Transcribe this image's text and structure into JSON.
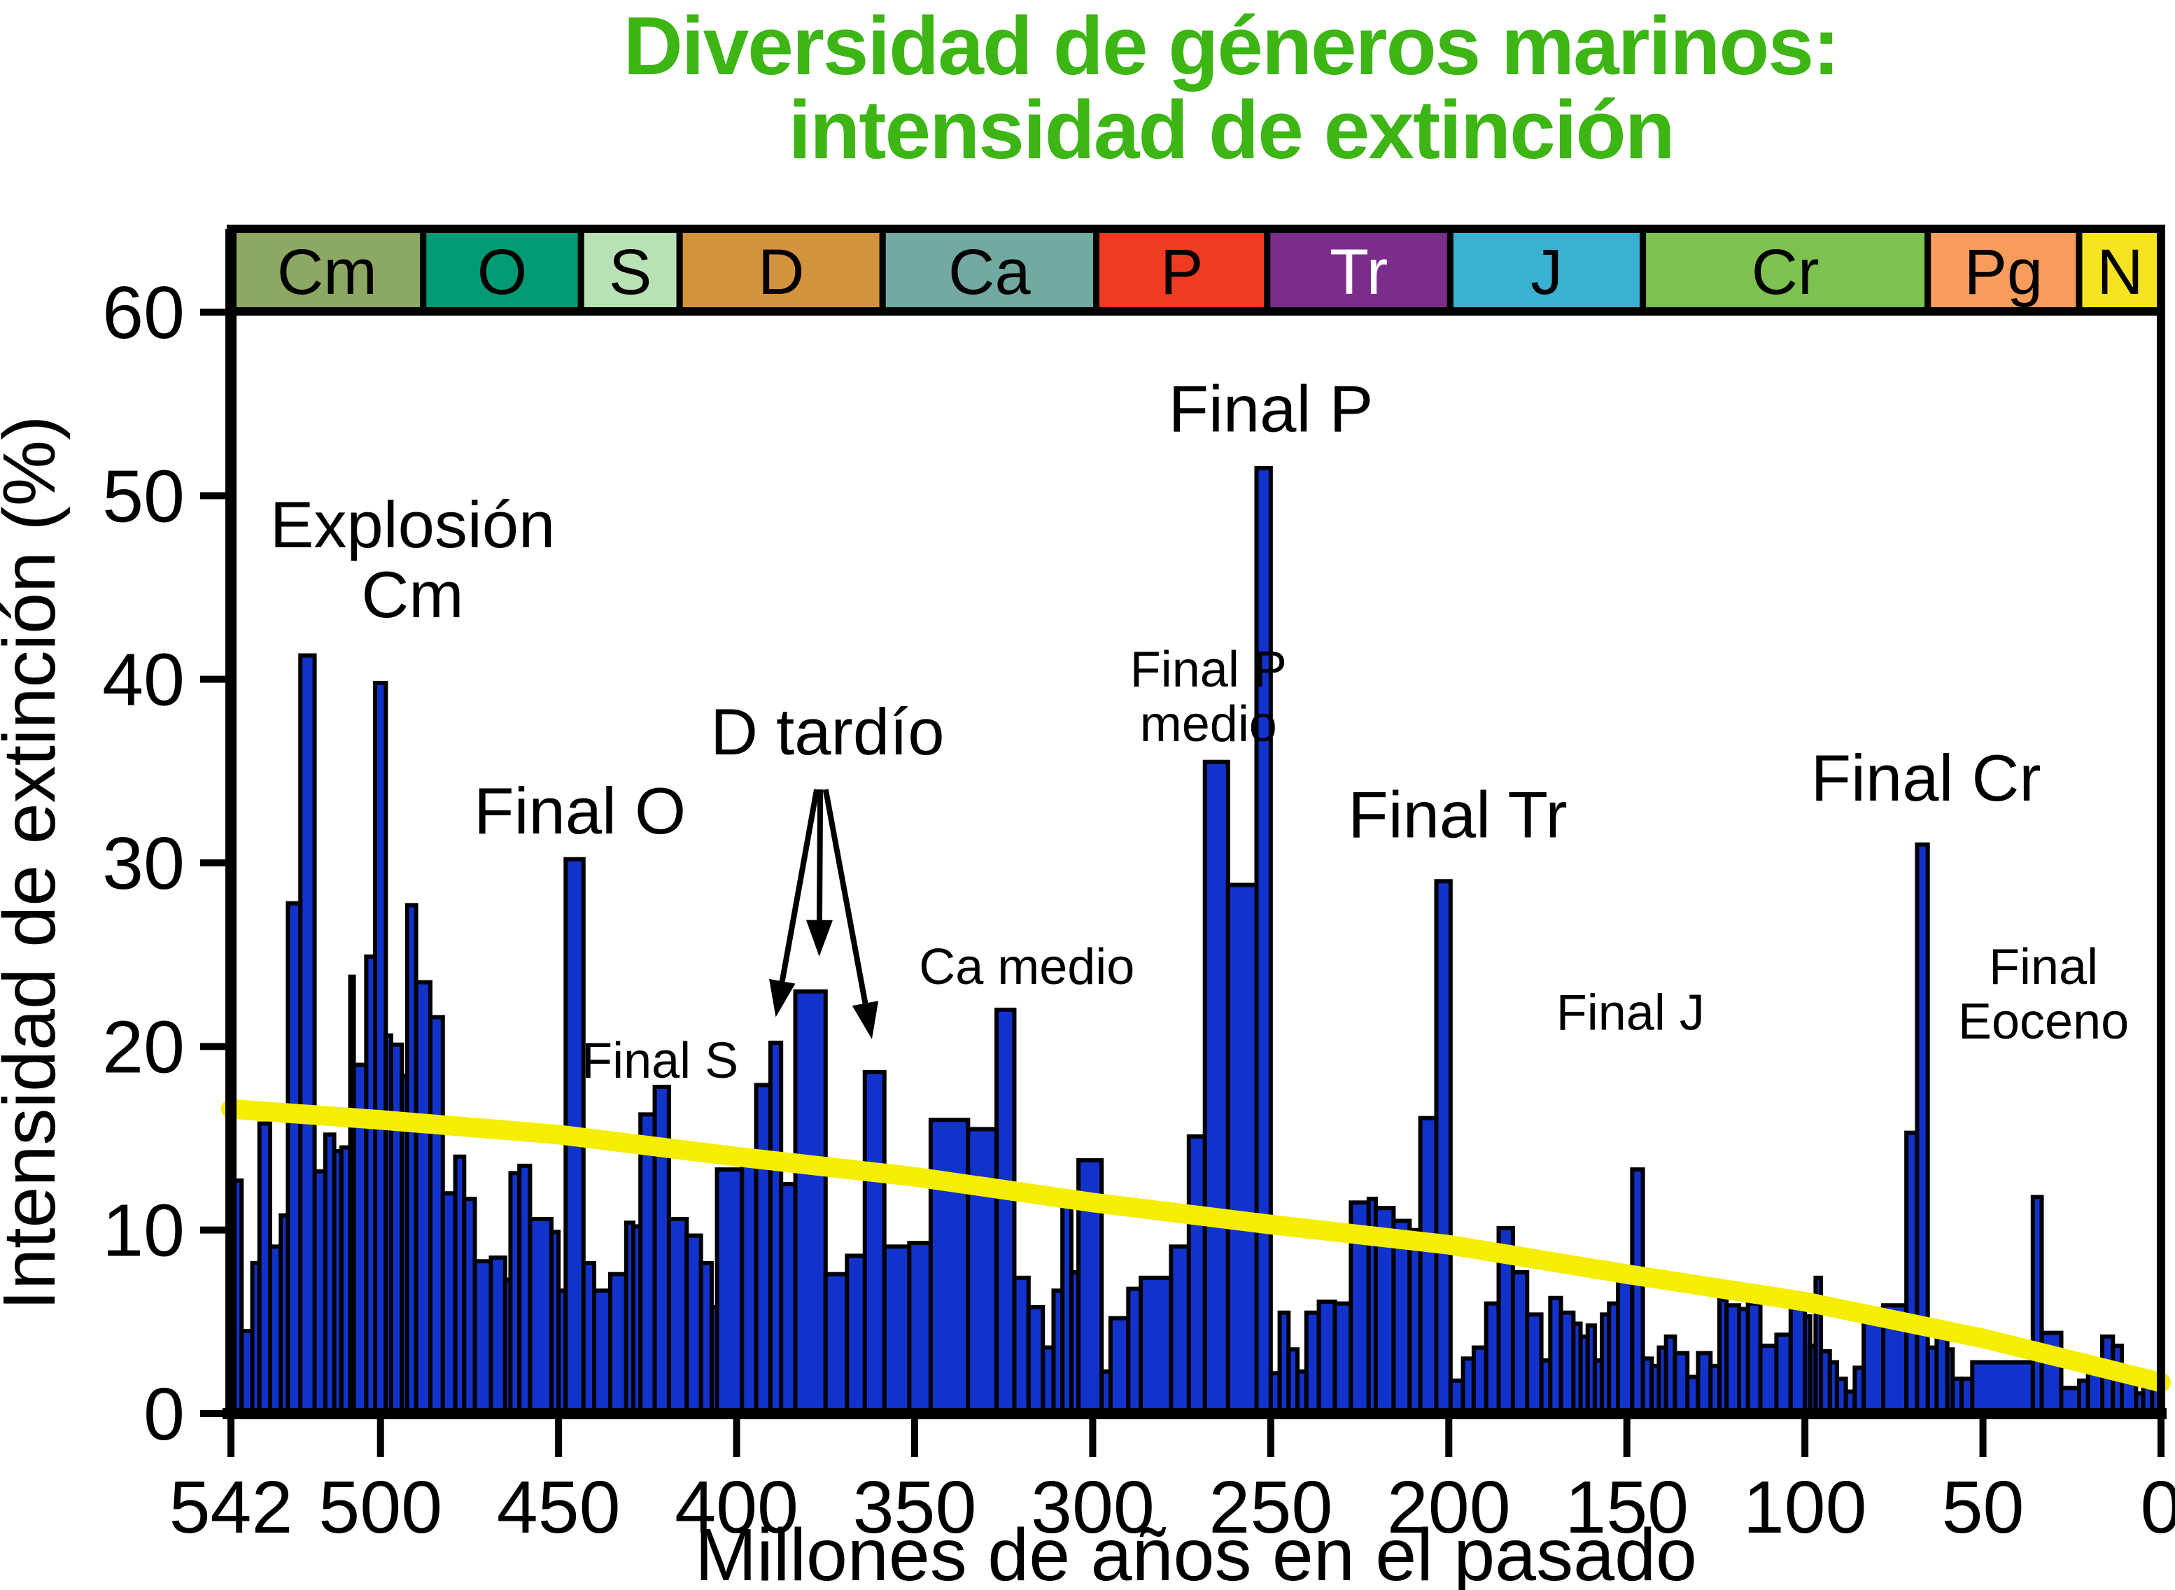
{
  "chart_data": {
    "type": "bar",
    "title_line1": "Diversidad de géneros marinos:",
    "title_line2": "intensidad de extinción",
    "title_color": "#3CB515",
    "xlabel": "Millones de años en el pasado",
    "ylabel": "Intensidad de extinción (%)",
    "xlim": [
      542,
      0
    ],
    "ylim": [
      0,
      60
    ],
    "x_ticks": [
      542,
      500,
      450,
      400,
      350,
      300,
      250,
      200,
      150,
      100,
      50,
      0
    ],
    "y_ticks": [
      0,
      10,
      20,
      30,
      40,
      50,
      60
    ],
    "grid": false,
    "bar_color": "#1232CC",
    "bar_outline": "#000000",
    "trend_color": "#F5EE00",
    "axis_color": "#000000",
    "periods": [
      {
        "label": "Cm",
        "from": 542,
        "to": 488,
        "color": "#8CA862",
        "text_color": "#000000"
      },
      {
        "label": "O",
        "from": 488,
        "to": 443.7,
        "color": "#009B74",
        "text_color": "#000000"
      },
      {
        "label": "S",
        "from": 443.7,
        "to": 416,
        "color": "#B9E1B6",
        "text_color": "#000000"
      },
      {
        "label": "D",
        "from": 416,
        "to": 359,
        "color": "#D3933E",
        "text_color": "#000000"
      },
      {
        "label": "Ca",
        "from": 359,
        "to": 299,
        "color": "#72A9A0",
        "text_color": "#000000"
      },
      {
        "label": "P",
        "from": 299,
        "to": 251,
        "color": "#EF3B22",
        "text_color": "#000000"
      },
      {
        "label": "Tr",
        "from": 251,
        "to": 199.6,
        "color": "#7B2D8C",
        "text_color": "#FFFFFF"
      },
      {
        "label": "J",
        "from": 199.6,
        "to": 145.5,
        "color": "#3BB1D1",
        "text_color": "#000000"
      },
      {
        "label": "Cr",
        "from": 145.5,
        "to": 65.5,
        "color": "#7DC24F",
        "text_color": "#000000"
      },
      {
        "label": "Pg",
        "from": 65.5,
        "to": 23,
        "color": "#F89C5C",
        "text_color": "#000000"
      },
      {
        "label": "N",
        "from": 23,
        "to": 0,
        "color": "#F7E421",
        "text_color": "#000000"
      }
    ],
    "bars": [
      [
        542,
        539,
        12.7
      ],
      [
        539,
        536,
        4.5
      ],
      [
        536,
        534,
        8.2
      ],
      [
        534,
        531,
        15.8
      ],
      [
        531,
        528,
        9.1
      ],
      [
        528,
        526,
        10.8
      ],
      [
        526,
        522.5,
        27.8
      ],
      [
        522.5,
        518.5,
        41.3
      ],
      [
        518.5,
        515.5,
        13.2
      ],
      [
        515.5,
        513,
        15.2
      ],
      [
        513,
        511,
        14.3
      ],
      [
        511,
        508.5,
        14.5
      ],
      [
        508.5,
        507.5,
        23.8
      ],
      [
        507.5,
        504,
        19
      ],
      [
        504,
        501.5,
        24.9
      ],
      [
        501.5,
        498.5,
        39.8
      ],
      [
        498.5,
        497,
        20.6
      ],
      [
        497,
        494,
        20.1
      ],
      [
        494,
        492.5,
        18.4
      ],
      [
        492.5,
        490,
        27.7
      ],
      [
        490,
        486,
        23.5
      ],
      [
        486,
        482.5,
        21.6
      ],
      [
        482.5,
        479,
        12
      ],
      [
        479,
        476.5,
        14
      ],
      [
        476.5,
        473.5,
        11.7
      ],
      [
        473.5,
        469,
        8.3
      ],
      [
        469,
        465,
        8.5
      ],
      [
        465,
        463.5,
        7.3
      ],
      [
        463.5,
        461,
        13.1
      ],
      [
        461,
        458,
        13.5
      ],
      [
        458,
        452,
        10.6
      ],
      [
        452,
        450,
        9.9
      ],
      [
        450,
        448,
        6.7
      ],
      [
        448,
        443,
        30.2
      ],
      [
        443,
        440,
        8.2
      ],
      [
        440,
        435.5,
        6.7
      ],
      [
        435.5,
        431,
        7.6
      ],
      [
        431,
        429,
        10.4
      ],
      [
        429,
        427,
        10.2
      ],
      [
        427,
        423,
        16.3
      ],
      [
        423,
        419,
        17.8
      ],
      [
        419,
        414,
        10.6
      ],
      [
        414,
        410,
        9.7
      ],
      [
        410,
        407,
        8.2
      ],
      [
        407,
        405.5,
        5.8
      ],
      [
        405.5,
        398.5,
        13.3
      ],
      [
        398.5,
        394.5,
        14.2
      ],
      [
        394.5,
        390.5,
        17.9
      ],
      [
        390.5,
        387.5,
        20.2
      ],
      [
        387.5,
        383.5,
        12.5
      ],
      [
        383.5,
        375,
        23
      ],
      [
        375,
        369,
        7.6
      ],
      [
        369,
        364,
        8.6
      ],
      [
        364,
        358.5,
        18.6
      ],
      [
        358.5,
        351.5,
        9.1
      ],
      [
        351.5,
        345.5,
        9.3
      ],
      [
        345.5,
        335,
        16
      ],
      [
        335,
        327,
        15.5
      ],
      [
        327,
        322,
        22
      ],
      [
        322,
        318,
        7.4
      ],
      [
        318,
        314,
        5.8
      ],
      [
        314,
        311,
        3.6
      ],
      [
        311,
        308.5,
        6.7
      ],
      [
        308.5,
        306,
        11.4
      ],
      [
        306,
        304,
        7.7
      ],
      [
        304,
        297.5,
        13.8
      ],
      [
        297.5,
        295,
        2.3
      ],
      [
        295,
        290,
        5.2
      ],
      [
        290,
        286.5,
        6.8
      ],
      [
        286.5,
        278,
        7.4
      ],
      [
        278,
        273,
        9.1
      ],
      [
        273,
        268.5,
        15.1
      ],
      [
        268.5,
        262,
        35.5
      ],
      [
        262,
        254,
        28.8
      ],
      [
        254,
        250,
        51.5
      ],
      [
        250,
        247.5,
        2.2
      ],
      [
        247.5,
        245,
        5.5
      ],
      [
        245,
        242.5,
        3.5
      ],
      [
        242.5,
        240,
        2.3
      ],
      [
        240,
        236.5,
        5.5
      ],
      [
        236.5,
        232,
        6.1
      ],
      [
        232,
        227.5,
        6
      ],
      [
        227.5,
        222.5,
        11.5
      ],
      [
        222.5,
        220.5,
        11.7
      ],
      [
        220.5,
        215.5,
        11.2
      ],
      [
        215.5,
        211,
        10.5
      ],
      [
        211,
        208,
        10
      ],
      [
        208,
        203.5,
        16.1
      ],
      [
        203.5,
        199.5,
        29
      ],
      [
        199.5,
        196,
        1.8
      ],
      [
        196,
        193,
        3
      ],
      [
        193,
        189.5,
        3.6
      ],
      [
        189.5,
        186,
        6
      ],
      [
        186,
        182,
        10.1
      ],
      [
        182,
        178,
        7.7
      ],
      [
        178,
        174,
        5.4
      ],
      [
        174,
        171.5,
        2.9
      ],
      [
        171.5,
        168.5,
        6.3
      ],
      [
        168.5,
        165,
        5.5
      ],
      [
        165,
        163,
        4.9
      ],
      [
        163,
        161,
        4.2
      ],
      [
        161,
        159,
        4.8
      ],
      [
        159,
        157,
        2.9
      ],
      [
        157,
        155,
        5.4
      ],
      [
        155,
        152.5,
        6
      ],
      [
        152.5,
        148.5,
        7.7
      ],
      [
        148.5,
        145.5,
        13.3
      ],
      [
        145.5,
        143,
        3
      ],
      [
        143,
        141,
        2.6
      ],
      [
        141,
        139,
        3.6
      ],
      [
        139,
        136.5,
        4.2
      ],
      [
        136.5,
        133,
        3.3
      ],
      [
        133,
        130,
        2
      ],
      [
        130,
        126.5,
        3.3
      ],
      [
        126.5,
        124,
        2.6
      ],
      [
        124,
        122,
        6.2
      ],
      [
        122,
        118.5,
        5.9
      ],
      [
        118.5,
        116,
        5.7
      ],
      [
        116,
        112.5,
        6
      ],
      [
        112.5,
        108,
        3.7
      ],
      [
        108,
        104,
        4.3
      ],
      [
        104,
        100,
        5.8
      ],
      [
        100,
        98.5,
        5.3
      ],
      [
        98.5,
        97,
        3.7
      ],
      [
        97,
        95.5,
        7.4
      ],
      [
        95.5,
        93,
        3.4
      ],
      [
        93,
        91,
        2.8
      ],
      [
        91,
        88.5,
        1.9
      ],
      [
        88.5,
        86,
        1.2
      ],
      [
        86,
        83.5,
        2.5
      ],
      [
        83.5,
        78,
        5.7
      ],
      [
        78,
        71.5,
        5.9
      ],
      [
        71.5,
        68.5,
        15.3
      ],
      [
        68.5,
        65.5,
        31
      ],
      [
        65.5,
        63,
        3.6
      ],
      [
        63,
        60,
        4.5
      ],
      [
        60,
        58.5,
        3.5
      ],
      [
        58.5,
        56,
        1.9
      ],
      [
        56,
        53,
        1.9
      ],
      [
        53,
        36,
        2.8
      ],
      [
        36,
        33.5,
        11.8
      ],
      [
        33.5,
        28,
        4.4
      ],
      [
        28,
        23,
        1.4
      ],
      [
        23,
        20.5,
        1.8
      ],
      [
        20.5,
        16.5,
        2.3
      ],
      [
        16.5,
        13.5,
        4.2
      ],
      [
        13.5,
        11,
        3.7
      ],
      [
        11,
        7,
        2
      ],
      [
        7,
        5,
        1.1
      ],
      [
        5,
        2.5,
        1.8
      ],
      [
        2.5,
        0,
        2.1
      ]
    ],
    "trend_points": [
      [
        542,
        16.6
      ],
      [
        500,
        16.0
      ],
      [
        450,
        15.2
      ],
      [
        400,
        14.0
      ],
      [
        350,
        12.9
      ],
      [
        300,
        11.5
      ],
      [
        250,
        10.3
      ],
      [
        200,
        9.2
      ],
      [
        150,
        7.6
      ],
      [
        100,
        6.1
      ],
      [
        50,
        4.1
      ],
      [
        0,
        1.7
      ]
    ],
    "annotations": [
      {
        "id": "explosion-cm",
        "lines": [
          "Explosión",
          "Cm"
        ],
        "ma": 491,
        "pct": 47.2,
        "size": "lg"
      },
      {
        "id": "final-o",
        "lines": [
          "Final O"
        ],
        "ma": 444,
        "pct": 31.6,
        "size": "lg"
      },
      {
        "id": "d-tardio",
        "lines": [
          "D tardío"
        ],
        "ma": 374.5,
        "pct": 35.9,
        "size": "lg"
      },
      {
        "id": "final-s",
        "lines": [
          "Final S"
        ],
        "ma": 421.5,
        "pct": 18.3,
        "size": "sm"
      },
      {
        "id": "ca-medio",
        "lines": [
          "Ca medio"
        ],
        "ma": 318.5,
        "pct": 23.4,
        "size": "sm"
      },
      {
        "id": "final-p-medio",
        "lines": [
          "Final P",
          "medio"
        ],
        "ma": 267.5,
        "pct": 39.6,
        "size": "sm"
      },
      {
        "id": "final-p",
        "lines": [
          "Final P"
        ],
        "ma": 250,
        "pct": 53.5,
        "size": "lg"
      },
      {
        "id": "final-tr",
        "lines": [
          "Final Tr"
        ],
        "ma": 197.5,
        "pct": 31.4,
        "size": "lg"
      },
      {
        "id": "final-j",
        "lines": [
          "Final J"
        ],
        "ma": 149,
        "pct": 20.9,
        "size": "sm"
      },
      {
        "id": "final-cr",
        "lines": [
          "Final Cr"
        ],
        "ma": 66,
        "pct": 33.4,
        "size": "lg"
      },
      {
        "id": "final-eoceno",
        "lines": [
          "Final",
          "Eoceno"
        ],
        "ma": 33,
        "pct": 23.4,
        "size": "sm"
      }
    ],
    "arrows": [
      {
        "from": [
          377.5,
          34.0
        ],
        "to": [
          389,
          21.6
        ]
      },
      {
        "from": [
          376.5,
          34.0
        ],
        "to": [
          376.8,
          24.9
        ]
      },
      {
        "from": [
          375,
          34.0
        ],
        "to": [
          362,
          20.4
        ]
      }
    ]
  }
}
